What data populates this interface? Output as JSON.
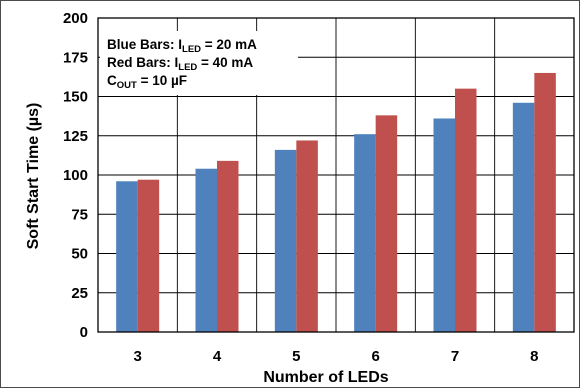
{
  "chart_data": {
    "type": "bar",
    "categories": [
      "3",
      "4",
      "5",
      "6",
      "7",
      "8"
    ],
    "series": [
      {
        "color": "#4f81bd",
        "values": [
          96,
          104,
          116,
          126,
          136,
          146
        ]
      },
      {
        "color": "#c0504d",
        "values": [
          97,
          109,
          122,
          138,
          155,
          165
        ]
      }
    ],
    "xlabel": "Number of LEDs",
    "ylabel": "Soft Start Time (µs)",
    "ylim": [
      0,
      200
    ],
    "yticks": [
      "0",
      "25",
      "50",
      "75",
      "100",
      "125",
      "150",
      "175",
      "200"
    ],
    "grid": true,
    "annotations": {
      "line1": {
        "prefix": "Blue Bars: I",
        "sub": "LED",
        "suffix": " = 20 mA"
      },
      "line2": {
        "prefix": "Red Bars:  I",
        "sub": "LED",
        "suffix": " = 40 mA"
      },
      "line3": {
        "prefix": "C",
        "sub": "OUT",
        "suffix": " = 10 µF"
      }
    }
  }
}
